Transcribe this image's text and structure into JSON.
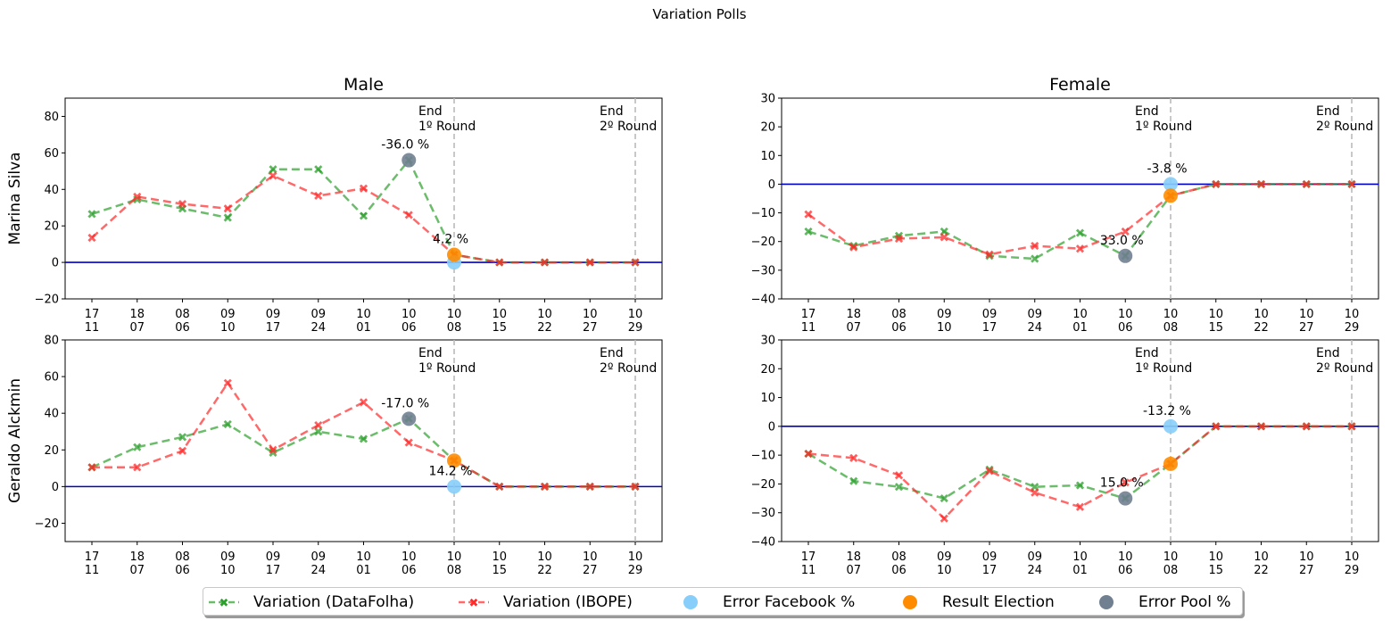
{
  "suptitle": "Variation Polls",
  "colors": {
    "datafolha": "#2ca02c",
    "ibope": "#ff2a2a",
    "facebook": "#87cefa",
    "result": "#ff8c00",
    "pool": "#708090",
    "zero_line": "#0000cc",
    "round_line": "#bbbbbb"
  },
  "legend": {
    "datafolha": "Variation (DataFolha)",
    "ibope": "Variation (IBOPE)",
    "facebook": "Error Facebook %",
    "result": "Result Election",
    "pool": "Error Pool %"
  },
  "chart_data": [
    {
      "id": "male-marina",
      "type": "line",
      "title": "Male",
      "ylabel": "Marina Silva",
      "categories": [
        "17\n11",
        "18\n07",
        "08\n06",
        "09\n10",
        "09\n17",
        "09\n24",
        "10\n01",
        "10\n06",
        "10\n08",
        "10\n15",
        "10\n22",
        "10\n27",
        "10\n29"
      ],
      "ylim": [
        -20,
        90
      ],
      "yticks": [
        -20,
        0,
        20,
        40,
        60,
        80
      ],
      "series": [
        {
          "name": "Variation (DataFolha)",
          "values": [
            26.5,
            34.5,
            29.5,
            24.5,
            51,
            51,
            25.5,
            56,
            4.2,
            0,
            0,
            0,
            0
          ]
        },
        {
          "name": "Variation (IBOPE)",
          "values": [
            13.5,
            36,
            32,
            29.5,
            47.5,
            36.5,
            40.5,
            26,
            4.2,
            0,
            0,
            0,
            0
          ]
        }
      ],
      "facebook_error": {
        "x": 8,
        "y": 0
      },
      "result_election": {
        "x": 8,
        "y": 4.2
      },
      "pool_error": {
        "x": 7,
        "y": 56
      },
      "annotations": [
        {
          "text": "-36.0 %",
          "x": 7,
          "y": 56
        },
        {
          "text": "4.2 %",
          "x": 8,
          "y": 4.2
        }
      ],
      "round_lines": [
        {
          "x": 8,
          "line1": "End",
          "line2": "1º Round"
        },
        {
          "x": 12,
          "line1": "End",
          "line2": "2º Round"
        }
      ]
    },
    {
      "id": "female-marina",
      "type": "line",
      "title": "Female",
      "ylabel": "",
      "categories": [
        "17\n11",
        "18\n07",
        "08\n06",
        "09\n10",
        "09\n17",
        "09\n24",
        "10\n01",
        "10\n06",
        "10\n08",
        "10\n15",
        "10\n22",
        "10\n27",
        "10\n29"
      ],
      "ylim": [
        -40,
        30
      ],
      "yticks": [
        -40,
        -30,
        -20,
        -10,
        0,
        10,
        20,
        30
      ],
      "series": [
        {
          "name": "Variation (DataFolha)",
          "values": [
            -16.5,
            -21.5,
            -18,
            -16.5,
            -25,
            -26,
            -17,
            -25,
            -4,
            0,
            0,
            0,
            0
          ]
        },
        {
          "name": "Variation (IBOPE)",
          "values": [
            -10.5,
            -22,
            -19,
            -18.5,
            -24.5,
            -21.5,
            -22.5,
            -16.5,
            -4,
            0,
            0,
            0,
            0
          ]
        }
      ],
      "facebook_error": {
        "x": 8,
        "y": 0
      },
      "result_election": {
        "x": 8,
        "y": -4
      },
      "pool_error": {
        "x": 7,
        "y": -25
      },
      "annotations": [
        {
          "text": "-3.8 %",
          "x": 8,
          "y": 0
        },
        {
          "text": "33.0 %",
          "x": 7,
          "y": -25
        }
      ],
      "round_lines": [
        {
          "x": 8,
          "line1": "End",
          "line2": "1º Round"
        },
        {
          "x": 12,
          "line1": "End",
          "line2": "2º Round"
        }
      ]
    },
    {
      "id": "male-alckmin",
      "type": "line",
      "title": "",
      "ylabel": "Geraldo Alckmin",
      "categories": [
        "17\n11",
        "18\n07",
        "08\n06",
        "09\n10",
        "09\n17",
        "09\n24",
        "10\n01",
        "10\n06",
        "10\n08",
        "10\n15",
        "10\n22",
        "10\n27",
        "10\n29"
      ],
      "ylim": [
        -30,
        80
      ],
      "yticks": [
        -20,
        0,
        20,
        40,
        60,
        80
      ],
      "series": [
        {
          "name": "Variation (DataFolha)",
          "values": [
            10.5,
            21.5,
            27,
            34,
            18.5,
            30,
            26,
            37,
            14.2,
            0,
            0,
            0,
            0
          ]
        },
        {
          "name": "Variation (IBOPE)",
          "values": [
            10.5,
            10.5,
            19.5,
            56.5,
            20,
            33.5,
            46,
            24,
            14.2,
            0,
            0,
            0,
            0
          ]
        }
      ],
      "facebook_error": {
        "x": 8,
        "y": 0
      },
      "result_election": {
        "x": 8,
        "y": 14.2
      },
      "pool_error": {
        "x": 7,
        "y": 37
      },
      "annotations": [
        {
          "text": "-17.0 %",
          "x": 7,
          "y": 37
        },
        {
          "text": "14.2 %",
          "x": 8,
          "y": 0
        }
      ],
      "round_lines": [
        {
          "x": 8,
          "line1": "End",
          "line2": "1º Round"
        },
        {
          "x": 12,
          "line1": "End",
          "line2": "2º Round"
        }
      ]
    },
    {
      "id": "female-alckmin",
      "type": "line",
      "title": "",
      "ylabel": "",
      "categories": [
        "17\n11",
        "18\n07",
        "08\n06",
        "09\n10",
        "09\n17",
        "09\n24",
        "10\n01",
        "10\n06",
        "10\n08",
        "10\n15",
        "10\n22",
        "10\n27",
        "10\n29"
      ],
      "ylim": [
        -40,
        30
      ],
      "yticks": [
        -40,
        -30,
        -20,
        -10,
        0,
        10,
        20,
        30
      ],
      "series": [
        {
          "name": "Variation (DataFolha)",
          "values": [
            -9.5,
            -19,
            -21,
            -25,
            -15,
            -21,
            -20.5,
            -25,
            -13,
            0,
            0,
            0,
            0
          ]
        },
        {
          "name": "Variation (IBOPE)",
          "values": [
            -9.5,
            -11,
            -17,
            -32,
            -15.5,
            -23,
            -28,
            -19.5,
            -13,
            0,
            0,
            0,
            0
          ]
        }
      ],
      "facebook_error": {
        "x": 8,
        "y": 0
      },
      "result_election": {
        "x": 8,
        "y": -13
      },
      "pool_error": {
        "x": 7,
        "y": -25
      },
      "annotations": [
        {
          "text": "-13.2 %",
          "x": 8,
          "y": 0
        },
        {
          "text": "15.0 %",
          "x": 7,
          "y": -25
        }
      ],
      "round_lines": [
        {
          "x": 8,
          "line1": "End",
          "line2": "1º Round"
        },
        {
          "x": 12,
          "line1": "End",
          "line2": "2º Round"
        }
      ]
    }
  ]
}
